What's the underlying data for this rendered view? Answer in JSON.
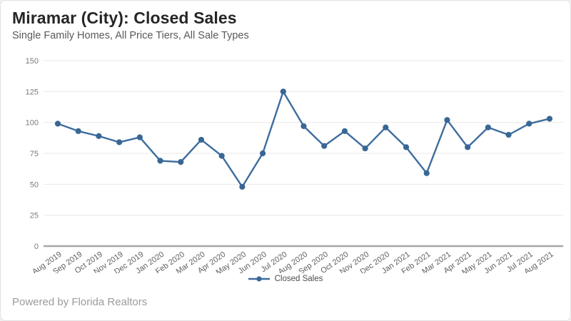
{
  "header": {
    "title": "Miramar (City): Closed Sales",
    "subtitle": "Single Family Homes, All Price Tiers, All Sale Types"
  },
  "footer": {
    "text": "Powered by Florida Realtors"
  },
  "colors": {
    "line": "#3d6d9e",
    "marker": "#386795",
    "grid": "#e9e9e9",
    "zero_axis": "#a6a6a6",
    "y_tick_label": "#7a7a7a",
    "x_tick_label": "#5f5f5f",
    "title": "#262626",
    "subtitle": "#595959",
    "footer": "#9b9b9b",
    "legend_label": "#4d4d4d"
  },
  "chart_data": {
    "type": "line",
    "title": "Miramar (City): Closed Sales",
    "subtitle": "Single Family Homes, All Price Tiers, All Sale Types",
    "x": [
      "Aug 2019",
      "Sep 2019",
      "Oct 2019",
      "Nov 2019",
      "Dec 2019",
      "Jan 2020",
      "Feb 2020",
      "Mar 2020",
      "Apr 2020",
      "May 2020",
      "Jun 2020",
      "Jul 2020",
      "Aug 2020",
      "Sep 2020",
      "Oct 2020",
      "Nov 2020",
      "Dec 2020",
      "Jan 2021",
      "Feb 2021",
      "Mar 2021",
      "Apr 2021",
      "May 2021",
      "Jun 2021",
      "Jul 2021",
      "Aug 2021"
    ],
    "series": [
      {
        "name": "Closed Sales",
        "values": [
          99,
          93,
          89,
          84,
          88,
          69,
          68,
          86,
          73,
          48,
          75,
          125,
          97,
          81,
          93,
          79,
          96,
          80,
          59,
          102,
          80,
          96,
          90,
          99,
          103
        ]
      }
    ],
    "xlabel": "",
    "ylabel": "",
    "ylim": [
      0,
      150
    ],
    "yticks": [
      0,
      25,
      50,
      75,
      100,
      125,
      150
    ],
    "grid": "horizontal",
    "legend_position": "bottom-center"
  }
}
